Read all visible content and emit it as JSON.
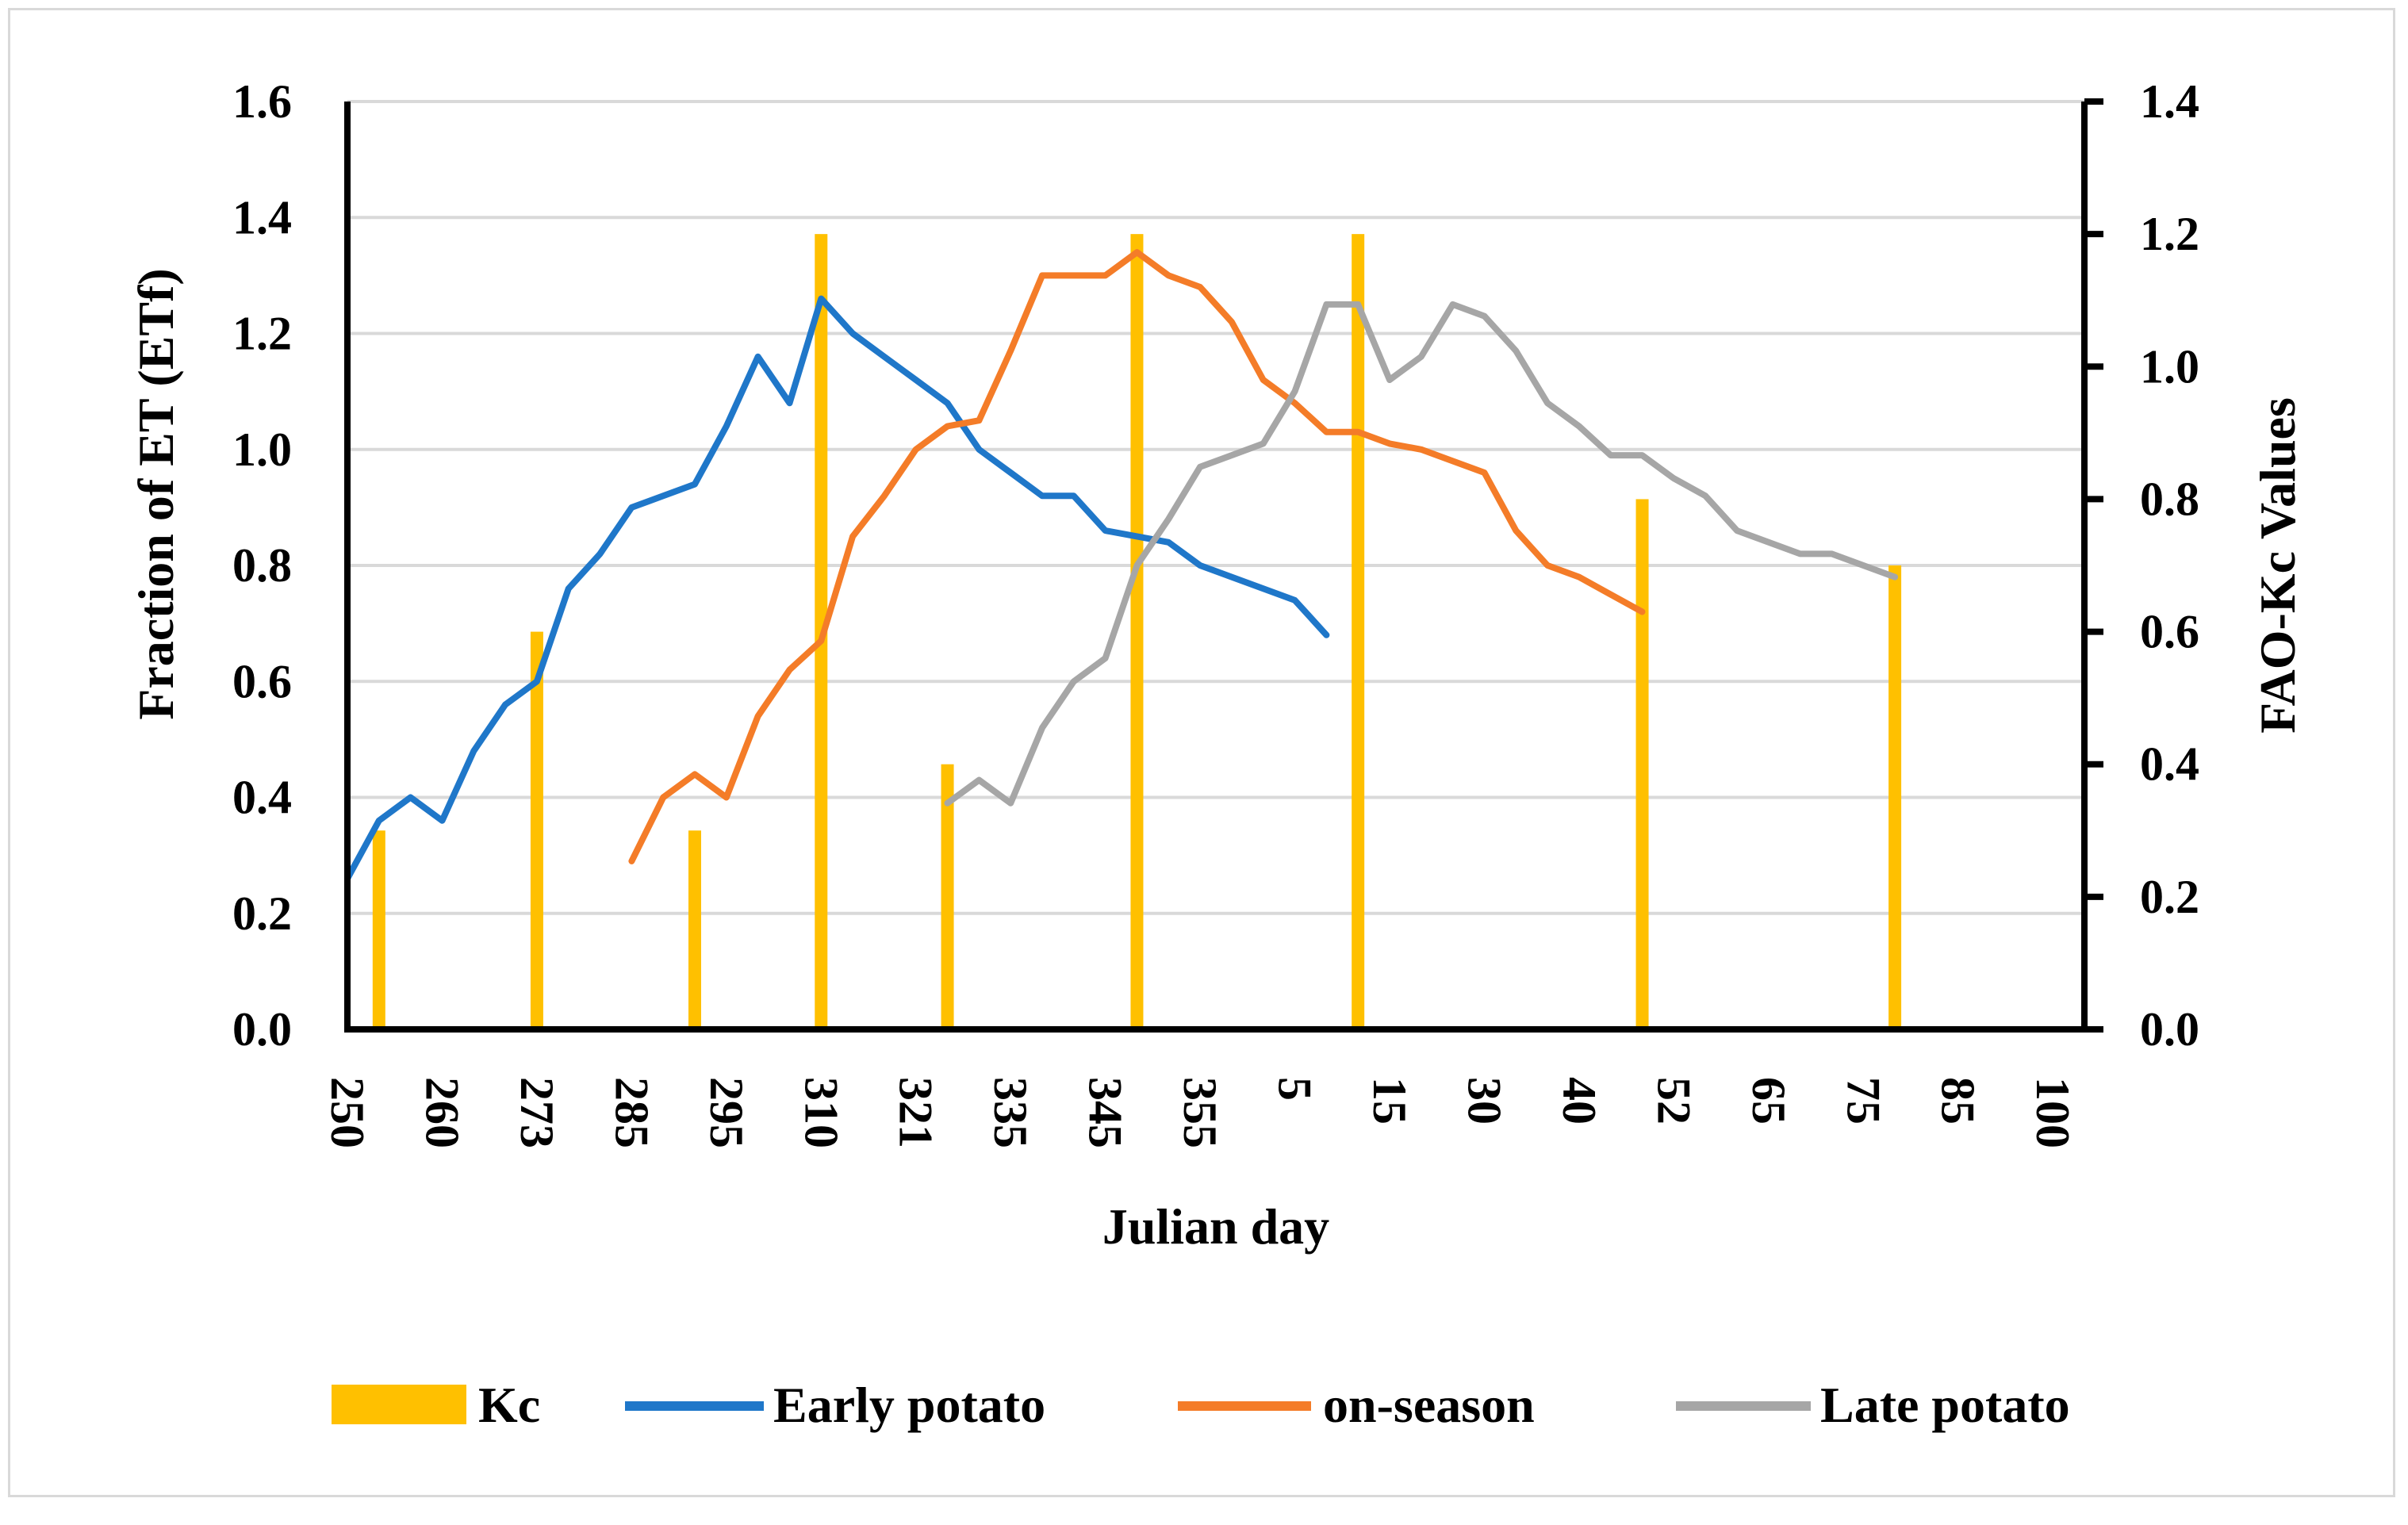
{
  "chart_data": {
    "type": "line",
    "title": "",
    "xlabel": "Julian day",
    "ylabel": "Fraction of ET (ETf)",
    "y2label": "FAO-Kc Values",
    "ylim": [
      0,
      1.6
    ],
    "y2lim": [
      0,
      1.4
    ],
    "yticks": [
      "0.0",
      "0.2",
      "0.4",
      "0.6",
      "0.8",
      "1.0",
      "1.2",
      "1.4",
      "1.6"
    ],
    "y2ticks": [
      "0.0",
      "0.2",
      "0.4",
      "0.6",
      "0.8",
      "1.0",
      "1.2",
      "1.4"
    ],
    "x_tick_labels": [
      "250",
      "260",
      "273",
      "285",
      "295",
      "310",
      "321",
      "335",
      "345",
      "355",
      "5",
      "15",
      "30",
      "40",
      "52",
      "65",
      "75",
      "85",
      "100"
    ],
    "x_tick_index": [
      0,
      6,
      12,
      18,
      24,
      30,
      36,
      42,
      48,
      54,
      60,
      66,
      72,
      78,
      84,
      90,
      96,
      102,
      108
    ],
    "x_index_range": [
      0,
      110
    ],
    "grid": true,
    "legend_position": "bottom",
    "kc_bars": {
      "name": "Kc",
      "color": "#FFC000",
      "axis": "right",
      "points": [
        {
          "x": 2,
          "value": 0.3
        },
        {
          "x": 12,
          "value": 0.6
        },
        {
          "x": 22,
          "value": 0.3
        },
        {
          "x": 30,
          "value": 1.2
        },
        {
          "x": 38,
          "value": 0.4
        },
        {
          "x": 50,
          "value": 1.2
        },
        {
          "x": 64,
          "value": 1.2
        },
        {
          "x": 82,
          "value": 0.8
        },
        {
          "x": 98,
          "value": 0.7
        }
      ]
    },
    "series": [
      {
        "name": "Early potato",
        "color": "#1F77C9",
        "axis": "left",
        "points": [
          [
            0,
            0.26
          ],
          [
            2,
            0.36
          ],
          [
            4,
            0.4
          ],
          [
            6,
            0.36
          ],
          [
            8,
            0.48
          ],
          [
            10,
            0.56
          ],
          [
            12,
            0.6
          ],
          [
            14,
            0.76
          ],
          [
            16,
            0.82
          ],
          [
            18,
            0.9
          ],
          [
            20,
            0.92
          ],
          [
            22,
            0.94
          ],
          [
            24,
            1.04
          ],
          [
            26,
            1.16
          ],
          [
            28,
            1.08
          ],
          [
            30,
            1.26
          ],
          [
            32,
            1.2
          ],
          [
            34,
            1.16
          ],
          [
            36,
            1.12
          ],
          [
            38,
            1.08
          ],
          [
            40,
            1.0
          ],
          [
            42,
            0.96
          ],
          [
            44,
            0.92
          ],
          [
            46,
            0.92
          ],
          [
            48,
            0.86
          ],
          [
            50,
            0.85
          ],
          [
            52,
            0.84
          ],
          [
            54,
            0.8
          ],
          [
            56,
            0.78
          ],
          [
            58,
            0.76
          ],
          [
            60,
            0.74
          ],
          [
            62,
            0.68
          ]
        ]
      },
      {
        "name": "on-season",
        "color": "#F47C28",
        "axis": "left",
        "points": [
          [
            18,
            0.29
          ],
          [
            20,
            0.4
          ],
          [
            22,
            0.44
          ],
          [
            24,
            0.4
          ],
          [
            26,
            0.54
          ],
          [
            28,
            0.62
          ],
          [
            30,
            0.67
          ],
          [
            32,
            0.85
          ],
          [
            34,
            0.92
          ],
          [
            36,
            1.0
          ],
          [
            38,
            1.04
          ],
          [
            40,
            1.05
          ],
          [
            42,
            1.17
          ],
          [
            44,
            1.3
          ],
          [
            46,
            1.3
          ],
          [
            48,
            1.3
          ],
          [
            50,
            1.34
          ],
          [
            52,
            1.3
          ],
          [
            54,
            1.28
          ],
          [
            56,
            1.22
          ],
          [
            58,
            1.12
          ],
          [
            60,
            1.08
          ],
          [
            62,
            1.03
          ],
          [
            64,
            1.03
          ],
          [
            66,
            1.01
          ],
          [
            68,
            1.0
          ],
          [
            70,
            0.98
          ],
          [
            72,
            0.96
          ],
          [
            74,
            0.86
          ],
          [
            76,
            0.8
          ],
          [
            78,
            0.78
          ],
          [
            80,
            0.75
          ],
          [
            82,
            0.72
          ]
        ]
      },
      {
        "name": "Late potato",
        "color": "#A6A6A6",
        "axis": "left",
        "points": [
          [
            38,
            0.39
          ],
          [
            40,
            0.43
          ],
          [
            42,
            0.39
          ],
          [
            44,
            0.52
          ],
          [
            46,
            0.6
          ],
          [
            48,
            0.64
          ],
          [
            50,
            0.8
          ],
          [
            52,
            0.88
          ],
          [
            54,
            0.97
          ],
          [
            56,
            0.99
          ],
          [
            58,
            1.01
          ],
          [
            60,
            1.1
          ],
          [
            62,
            1.25
          ],
          [
            64,
            1.25
          ],
          [
            66,
            1.12
          ],
          [
            68,
            1.16
          ],
          [
            70,
            1.25
          ],
          [
            72,
            1.23
          ],
          [
            74,
            1.17
          ],
          [
            76,
            1.08
          ],
          [
            78,
            1.04
          ],
          [
            80,
            0.99
          ],
          [
            82,
            0.99
          ],
          [
            84,
            0.95
          ],
          [
            86,
            0.92
          ],
          [
            88,
            0.86
          ],
          [
            90,
            0.84
          ],
          [
            92,
            0.82
          ],
          [
            94,
            0.82
          ],
          [
            96,
            0.8
          ],
          [
            98,
            0.78
          ]
        ]
      }
    ],
    "legend": [
      "Kc",
      "Early potato",
      "on-season",
      "Late potato"
    ]
  }
}
